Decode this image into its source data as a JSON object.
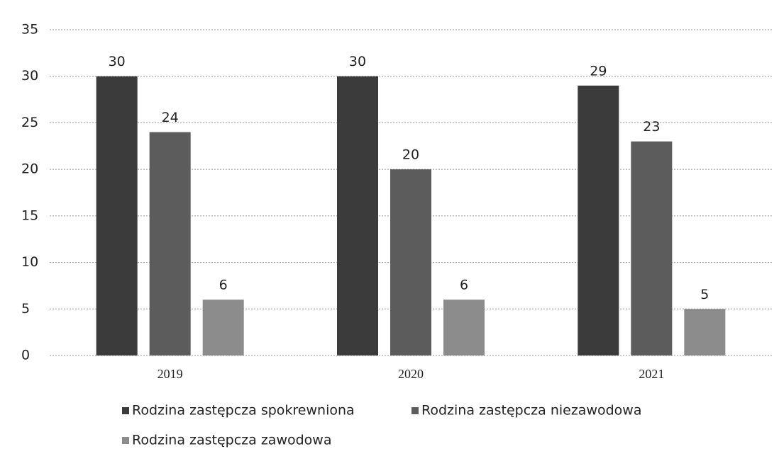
{
  "chart_data": {
    "type": "bar",
    "categories": [
      "2019",
      "2020",
      "2021"
    ],
    "series": [
      {
        "name": "Rodzina zastępcza spokrewniona",
        "color": "#3b3b3b",
        "values": [
          30,
          30,
          29
        ]
      },
      {
        "name": "Rodzina zastępcza niezawodowa",
        "color": "#5c5c5c",
        "values": [
          24,
          20,
          23
        ]
      },
      {
        "name": "Rodzina zastępcza zawodowa",
        "color": "#8c8c8c",
        "values": [
          6,
          6,
          5
        ]
      }
    ],
    "ylim": [
      0,
      35
    ],
    "yticks": [
      0,
      5,
      10,
      15,
      20,
      25,
      30,
      35
    ],
    "grid": true,
    "legend": "bottom"
  }
}
